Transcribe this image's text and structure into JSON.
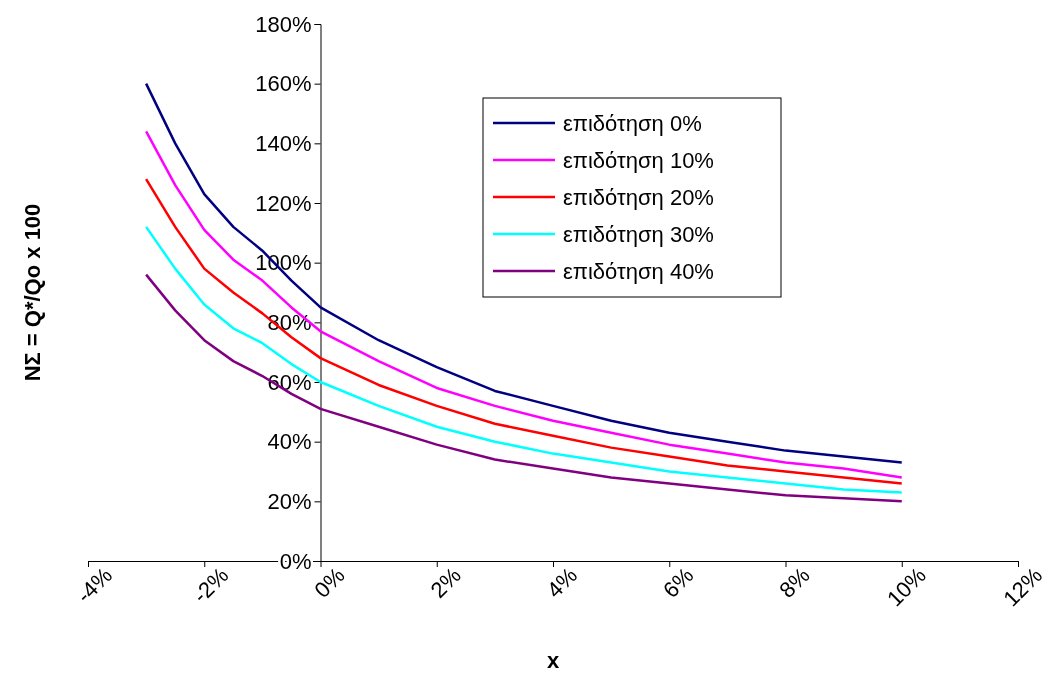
{
  "chart_data": {
    "type": "line",
    "xlabel": "x",
    "ylabel": "NΣ = Q*/Qo x 100",
    "x": [
      -3,
      -2.5,
      -2,
      -1.5,
      -1,
      -0.5,
      0,
      1,
      2,
      3,
      4,
      5,
      6,
      7,
      8,
      9,
      10
    ],
    "series": [
      {
        "name": "επιδότηση 0%",
        "color": "#000080",
        "values": [
          160,
          140,
          123,
          112,
          104,
          94,
          85,
          74,
          65,
          57,
          52,
          47,
          43,
          40,
          37,
          35,
          33
        ]
      },
      {
        "name": "επιδότηση 10%",
        "color": "#ff00ff",
        "values": [
          144,
          126,
          111,
          101,
          94,
          85,
          77,
          67,
          58,
          52,
          47,
          43,
          39,
          36,
          33,
          31,
          28
        ]
      },
      {
        "name": "επιδότηση 20%",
        "color": "#ff0000",
        "values": [
          128,
          112,
          98,
          90,
          83,
          75,
          68,
          59,
          52,
          46,
          42,
          38,
          35,
          32,
          30,
          28,
          26
        ]
      },
      {
        "name": "επιδότηση 30%",
        "color": "#00ffff",
        "values": [
          112,
          98,
          86,
          78,
          73,
          66,
          60,
          52,
          45,
          40,
          36,
          33,
          30,
          28,
          26,
          24,
          23
        ]
      },
      {
        "name": "επιδότηση 40%",
        "color": "#800080",
        "values": [
          96,
          84,
          74,
          67,
          62,
          56,
          51,
          45,
          39,
          34,
          31,
          28,
          26,
          24,
          22,
          21,
          20
        ]
      }
    ],
    "xlim": [
      -4,
      12
    ],
    "ylim": [
      0,
      180
    ],
    "xticks": [
      {
        "value": -4,
        "label": "-4%"
      },
      {
        "value": -2,
        "label": "-2%"
      },
      {
        "value": 0,
        "label": "0%"
      },
      {
        "value": 2,
        "label": "2%"
      },
      {
        "value": 4,
        "label": "4%"
      },
      {
        "value": 6,
        "label": "6%"
      },
      {
        "value": 8,
        "label": "8%"
      },
      {
        "value": 10,
        "label": "10%"
      },
      {
        "value": 12,
        "label": "12%"
      }
    ],
    "yticks": [
      {
        "value": 0,
        "label": "0%"
      },
      {
        "value": 20,
        "label": "20%"
      },
      {
        "value": 40,
        "label": "40%"
      },
      {
        "value": 60,
        "label": "60%"
      },
      {
        "value": 80,
        "label": "80%"
      },
      {
        "value": 100,
        "label": "100%"
      },
      {
        "value": 120,
        "label": "120%"
      },
      {
        "value": 140,
        "label": "140%"
      },
      {
        "value": 160,
        "label": "160%"
      },
      {
        "value": 180,
        "label": "180%"
      }
    ],
    "legend": "top right",
    "marker": "none",
    "line_style": "solid",
    "grid": false
  }
}
